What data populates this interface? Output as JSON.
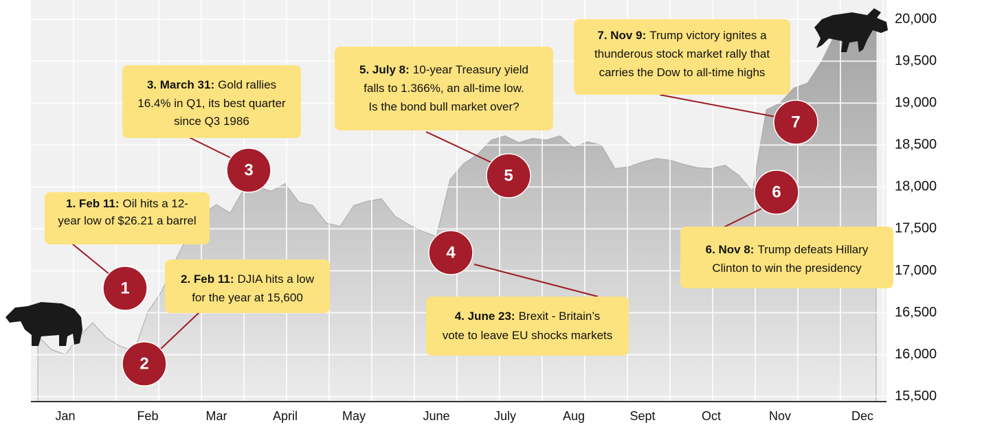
{
  "chart_data": {
    "type": "area",
    "categories": [
      null,
      null,
      "Jan",
      null,
      null,
      null,
      null,
      null,
      "Feb",
      null,
      null,
      null,
      null,
      "Mar",
      null,
      null,
      null,
      null,
      "April",
      null,
      null,
      null,
      null,
      "May",
      null,
      null,
      null,
      null,
      null,
      "June",
      null,
      null,
      null,
      null,
      "July",
      null,
      null,
      null,
      null,
      "Aug",
      null,
      null,
      null,
      null,
      "Sept",
      null,
      null,
      null,
      null,
      "Oct",
      null,
      null,
      null,
      null,
      "Nov",
      null,
      null,
      null,
      null,
      null,
      "Dec",
      null
    ],
    "values": [
      16220,
      16060,
      16000,
      16220,
      16380,
      16200,
      16100,
      16040,
      16510,
      16750,
      17120,
      17450,
      17680,
      17790,
      17690,
      17980,
      18000,
      17950,
      18040,
      17820,
      17780,
      17570,
      17530,
      17780,
      17830,
      17860,
      17650,
      17550,
      17470,
      17410,
      18090,
      18280,
      18390,
      18560,
      18610,
      18530,
      18580,
      18560,
      18610,
      18470,
      18540,
      18500,
      18220,
      18240,
      18300,
      18340,
      18320,
      18270,
      18230,
      18220,
      18260,
      18140,
      17950,
      18920,
      19000,
      19180,
      19240,
      19490,
      19820,
      19900,
      19900,
      19900
    ],
    "color": "#a9a9a9",
    "ylim": [
      15440,
      20230
    ],
    "yticks": [
      {
        "value": 15500,
        "label": "15,500"
      },
      {
        "value": 16000,
        "label": "16,000"
      },
      {
        "value": 16500,
        "label": "16,500"
      },
      {
        "value": 17000,
        "label": "17,000"
      },
      {
        "value": 17500,
        "label": "17,500"
      },
      {
        "value": 18000,
        "label": "18,000"
      },
      {
        "value": 18500,
        "label": "18,500"
      },
      {
        "value": 19000,
        "label": "19,000"
      },
      {
        "value": 19500,
        "label": "19,500"
      },
      {
        "value": 20000,
        "label": "20,000"
      }
    ],
    "grid": true,
    "annotations": [
      {
        "number": 1,
        "label": "1. Feb 11:",
        "lines": [
          "Oil hits a 12-",
          "year low of $26.21 a barrel"
        ]
      },
      {
        "number": 2,
        "label": "2. Feb 11:",
        "lines": [
          "DJIA hits a low",
          "for the year at 15,600"
        ]
      },
      {
        "number": 3,
        "label": "3. March 31:",
        "lines": [
          "Gold rallies",
          "16.4% in Q1, its best quarter",
          "since Q3 1986"
        ]
      },
      {
        "number": 4,
        "label": "4. June 23:",
        "lines": [
          "Brexit - Britain’s",
          "vote to leave EU shocks markets"
        ]
      },
      {
        "number": 5,
        "label": "5. July 8:",
        "lines": [
          "10-year Treasury yield",
          "falls to 1.366%, an all-time low.",
          "Is the bond bull market over?"
        ]
      },
      {
        "number": 6,
        "label": "6. Nov 8:",
        "lines": [
          "Trump defeats Hillary",
          "Clinton to win the presidency"
        ]
      },
      {
        "number": 7,
        "label": "7. Nov 9:",
        "lines": [
          "Trump victory ignites a",
          "thunderous stock market rally that",
          "carries the Dow to all-time highs"
        ]
      }
    ]
  }
}
